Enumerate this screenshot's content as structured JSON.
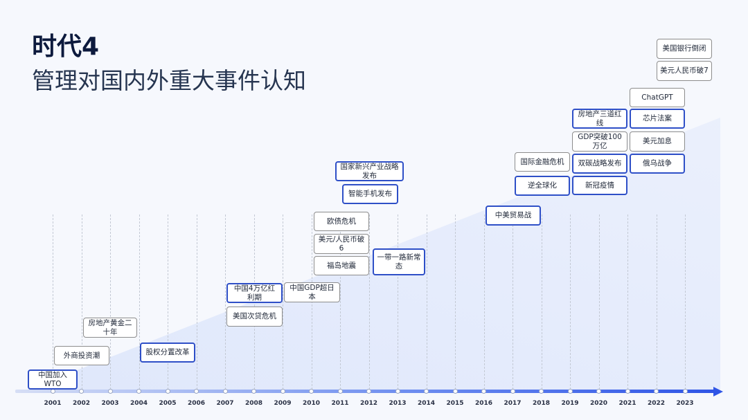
{
  "header": {
    "title": "时代4",
    "subtitle": "管理对国内外重大事件认知"
  },
  "colors": {
    "highlight_border": "#2e4fc7",
    "normal_border": "#8c8c8c",
    "axis": "#2f55e6"
  },
  "timeline": {
    "years": [
      "2001",
      "2002",
      "2003",
      "2004",
      "2005",
      "2006",
      "2007",
      "2008",
      "2009",
      "2010",
      "2011",
      "2012",
      "2013",
      "2014",
      "2015",
      "2016",
      "2017",
      "2018",
      "2019",
      "2020",
      "2021",
      "2022",
      "2023"
    ],
    "events": [
      {
        "label": "中国加入WTO",
        "year": "2001",
        "highlight": true
      },
      {
        "label": "外商投资潮",
        "year": "2002",
        "highlight": false
      },
      {
        "label": "房地产黄金二十年",
        "year": "2003",
        "highlight": false
      },
      {
        "label": "股权分置改革",
        "year": "2005",
        "highlight": true
      },
      {
        "label": "中国4万亿红利期",
        "year": "2008",
        "highlight": true
      },
      {
        "label": "美国次贷危机",
        "year": "2008",
        "highlight": false
      },
      {
        "label": "中国GDP超日本",
        "year": "2010",
        "highlight": false
      },
      {
        "label": "欧债危机",
        "year": "2011",
        "highlight": false
      },
      {
        "label": "美元/人民币破6",
        "year": "2011",
        "highlight": false
      },
      {
        "label": "福岛地震",
        "year": "2011",
        "highlight": false
      },
      {
        "label": "国家新兴产业战略发布",
        "year": "2012",
        "highlight": true
      },
      {
        "label": "智能手机发布",
        "year": "2012",
        "highlight": true
      },
      {
        "label": "一带一路新常态",
        "year": "2013",
        "highlight": true
      },
      {
        "label": "中美贸易战",
        "year": "2017",
        "highlight": true
      },
      {
        "label": "国际金融危机",
        "year": "2018",
        "highlight": false
      },
      {
        "label": "逆全球化",
        "year": "2018",
        "highlight": true
      },
      {
        "label": "房地产三道红线",
        "year": "2020",
        "highlight": true
      },
      {
        "label": "GDP突破100万亿",
        "year": "2020",
        "highlight": false
      },
      {
        "label": "双碳战略发布",
        "year": "2020",
        "highlight": true
      },
      {
        "label": "新冠疫情",
        "year": "2020",
        "highlight": true
      },
      {
        "label": "ChatGPT",
        "year": "2022",
        "highlight": false
      },
      {
        "label": "芯片法案",
        "year": "2022",
        "highlight": true
      },
      {
        "label": "美元加息",
        "year": "2022",
        "highlight": false
      },
      {
        "label": "俄乌战争",
        "year": "2022",
        "highlight": true
      },
      {
        "label": "美国银行倒闭",
        "year": "2023",
        "highlight": false
      },
      {
        "label": "美元人民币破7",
        "year": "2023",
        "highlight": false
      }
    ]
  }
}
